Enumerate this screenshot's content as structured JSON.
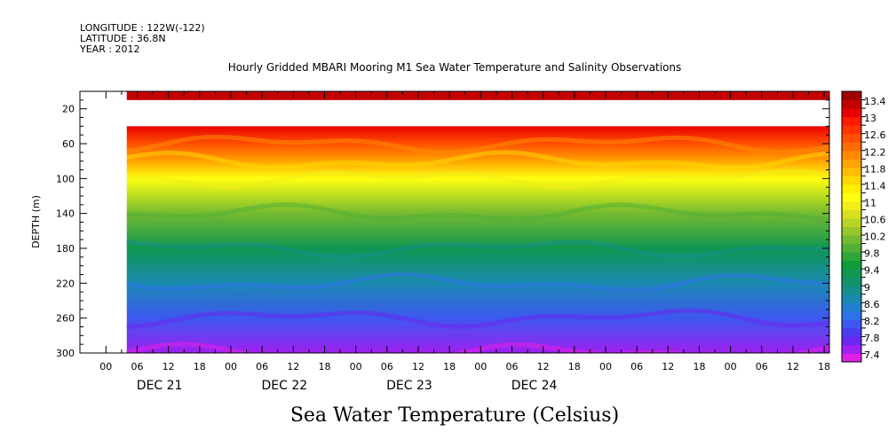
{
  "header": {
    "longitude": "LONGITUDE : 122W(-122)",
    "latitude": "LATITUDE : 36.8N",
    "year": "YEAR : 2012"
  },
  "chart_data": {
    "type": "heatmap",
    "title": "Hourly Gridded MBARI Mooring M1 Sea Water Temperature and Salinity Observations",
    "subtitle": "Sea Water Temperature (Celsius)",
    "ylabel": "DEPTH (m)",
    "ylim": [
      0,
      300
    ],
    "y_inverted": true,
    "y_ticks": [
      20,
      60,
      100,
      140,
      180,
      220,
      260,
      300
    ],
    "xlim_hours": [
      -5,
      139
    ],
    "x_ticks": [
      {
        "hour": 0,
        "label": "00"
      },
      {
        "hour": 6,
        "label": "06"
      },
      {
        "hour": 12,
        "label": "12"
      },
      {
        "hour": 18,
        "label": "18"
      },
      {
        "hour": 24,
        "label": "00"
      },
      {
        "hour": 30,
        "label": "06"
      },
      {
        "hour": 36,
        "label": "12"
      },
      {
        "hour": 42,
        "label": "18"
      },
      {
        "hour": 48,
        "label": "00"
      },
      {
        "hour": 54,
        "label": "06"
      },
      {
        "hour": 60,
        "label": "12"
      },
      {
        "hour": 66,
        "label": "18"
      },
      {
        "hour": 72,
        "label": "00"
      },
      {
        "hour": 78,
        "label": "06"
      },
      {
        "hour": 84,
        "label": "12"
      },
      {
        "hour": 90,
        "label": "18"
      },
      {
        "hour": 96,
        "label": "00"
      },
      {
        "hour": 102,
        "label": "06"
      },
      {
        "hour": 108,
        "label": "12"
      },
      {
        "hour": 114,
        "label": "18"
      },
      {
        "hour": 120,
        "label": "00"
      },
      {
        "hour": 126,
        "label": "06"
      },
      {
        "hour": 132,
        "label": "12"
      },
      {
        "hour": 138,
        "label": "18"
      }
    ],
    "day_labels": [
      {
        "hour": 12,
        "label": "DEC 21"
      },
      {
        "hour": 36,
        "label": "DEC 22"
      },
      {
        "hour": 60,
        "label": "DEC 23"
      },
      {
        "hour": 84,
        "label": "DEC 24"
      }
    ],
    "data_start_hour": 4,
    "data_end_hour": 139,
    "missing_depth_band": [
      10,
      40
    ],
    "surface_band": {
      "depth": [
        0,
        10
      ],
      "value": 13.4
    },
    "depth_profile": [
      {
        "depth": 40,
        "value": 13.2
      },
      {
        "depth": 60,
        "value": 12.6
      },
      {
        "depth": 80,
        "value": 12.0
      },
      {
        "depth": 100,
        "value": 11.3
      },
      {
        "depth": 140,
        "value": 10.3
      },
      {
        "depth": 180,
        "value": 9.4
      },
      {
        "depth": 220,
        "value": 8.8
      },
      {
        "depth": 260,
        "value": 8.2
      },
      {
        "depth": 300,
        "value": 7.6
      }
    ],
    "legend": {
      "position": "right",
      "levels": [
        7.4,
        7.6,
        7.8,
        8.0,
        8.2,
        8.4,
        8.6,
        8.8,
        9.0,
        9.2,
        9.4,
        9.6,
        9.8,
        10.0,
        10.2,
        10.4,
        10.6,
        10.8,
        11.0,
        11.2,
        11.4,
        11.6,
        11.8,
        12.0,
        12.2,
        12.4,
        12.6,
        12.8,
        13.0,
        13.2,
        13.4,
        13.6
      ],
      "labels": [
        "7.4",
        "7.8",
        "8.2",
        "8.6",
        "9",
        "9.4",
        "9.8",
        "10.2",
        "10.6",
        "11",
        "11.4",
        "11.8",
        "12.2",
        "12.6",
        "13",
        "13.4"
      ],
      "colors": [
        "#e020e8",
        "#a020f0",
        "#6a28f0",
        "#4b3cf0",
        "#3d58f0",
        "#2e73e8",
        "#227fd0",
        "#1a8ab0",
        "#158f8a",
        "#12936a",
        "#0f9650",
        "#109b3c",
        "#2ea63a",
        "#52b036",
        "#74ba30",
        "#96c62a",
        "#b8d424",
        "#d8e01e",
        "#f0ee16",
        "#ffff10",
        "#fff000",
        "#ffd800",
        "#ffbe00",
        "#ffa400",
        "#ff8a00",
        "#ff6c00",
        "#ff5000",
        "#ff3400",
        "#ff1a00",
        "#e80000",
        "#c40000",
        "#a00000"
      ]
    },
    "grid": false
  }
}
